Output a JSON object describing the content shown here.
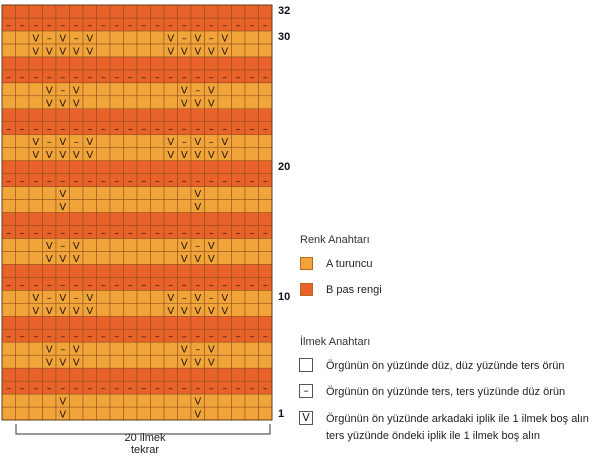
{
  "row_numbers": [
    {
      "label": "32",
      "row": 32
    },
    {
      "label": "30",
      "row": 30
    },
    {
      "label": "20",
      "row": 20
    },
    {
      "label": "10",
      "row": 10
    },
    {
      "label": "1",
      "row": 1
    }
  ],
  "repeat": {
    "line1": "20 ilmek",
    "line2": "tekrar"
  },
  "color_key": {
    "title": "Renk Anahtarı",
    "items": [
      {
        "label": "A turuncu",
        "color": "#f0a43a"
      },
      {
        "label": "B pas rengi",
        "color": "#e8622a"
      }
    ]
  },
  "stitch_key": {
    "title": "İlmek Anahtarı",
    "items": [
      {
        "symbol": "",
        "label": "Örgünün ön yüzünde düz, düz yüzünde ters örün"
      },
      {
        "symbol": "–",
        "label": "Örgünün ön yüzünde ters, ters yüzünde düz örün"
      },
      {
        "symbol": "V",
        "label": "Örgünün ön yüzünde arkadaki iplik ile 1 ilmek boş alın",
        "label2": "ters yüzünde öndeki iplik ile 1 ilmek boş alın"
      }
    ]
  },
  "chart_data": {
    "type": "knitting-chart",
    "rows": 32,
    "columns": 20,
    "row_colors": [
      "A",
      "A",
      "B",
      "B",
      "A",
      "A",
      "B",
      "B",
      "A",
      "A",
      "B",
      "B",
      "A",
      "A",
      "B",
      "B",
      "A",
      "A",
      "B",
      "B",
      "A",
      "A",
      "B",
      "B",
      "A",
      "A",
      "B",
      "B",
      "A",
      "A",
      "B",
      "B"
    ],
    "purl_rows": [
      3,
      7,
      11,
      15,
      19,
      23,
      27,
      31
    ],
    "slip_patterns": {
      "odd": [
        "",
        "",
        "",
        "",
        "V",
        "",
        "",
        "",
        "",
        "",
        "",
        "",
        "",
        "",
        "V",
        "",
        "",
        "",
        "",
        ""
      ],
      "wide": [
        "",
        "",
        "V",
        "V",
        "V",
        "V",
        "V",
        "",
        "",
        "",
        "",
        "",
        "V",
        "V",
        "V",
        "V",
        "V",
        "",
        "",
        ""
      ],
      "wide_purl": [
        "",
        "",
        "V",
        "–",
        "V",
        "–",
        "V",
        "",
        "",
        "",
        "",
        "",
        "V",
        "–",
        "V",
        "–",
        "V",
        "",
        "",
        ""
      ],
      "narrow": [
        "",
        "",
        "",
        "V",
        "V",
        "V",
        "",
        "",
        "",
        "",
        "",
        "",
        "",
        "V",
        "V",
        "V",
        "",
        "",
        "",
        ""
      ],
      "narrow_purl": [
        "",
        "",
        "",
        "V",
        "–",
        "V",
        "",
        "",
        "",
        "",
        "",
        "",
        "",
        "V",
        "–",
        "V",
        "",
        "",
        "",
        ""
      ]
    },
    "row_slip": {
      "1": "odd",
      "2": "odd",
      "5": "narrow",
      "6": "narrow_purl",
      "9": "wide",
      "10": "wide_purl",
      "13": "narrow",
      "14": "narrow_purl",
      "17": "odd",
      "18": "odd",
      "21": "wide",
      "22": "wide_purl",
      "25": "narrow",
      "26": "narrow_purl",
      "29": "wide",
      "30": "wide_purl"
    }
  }
}
